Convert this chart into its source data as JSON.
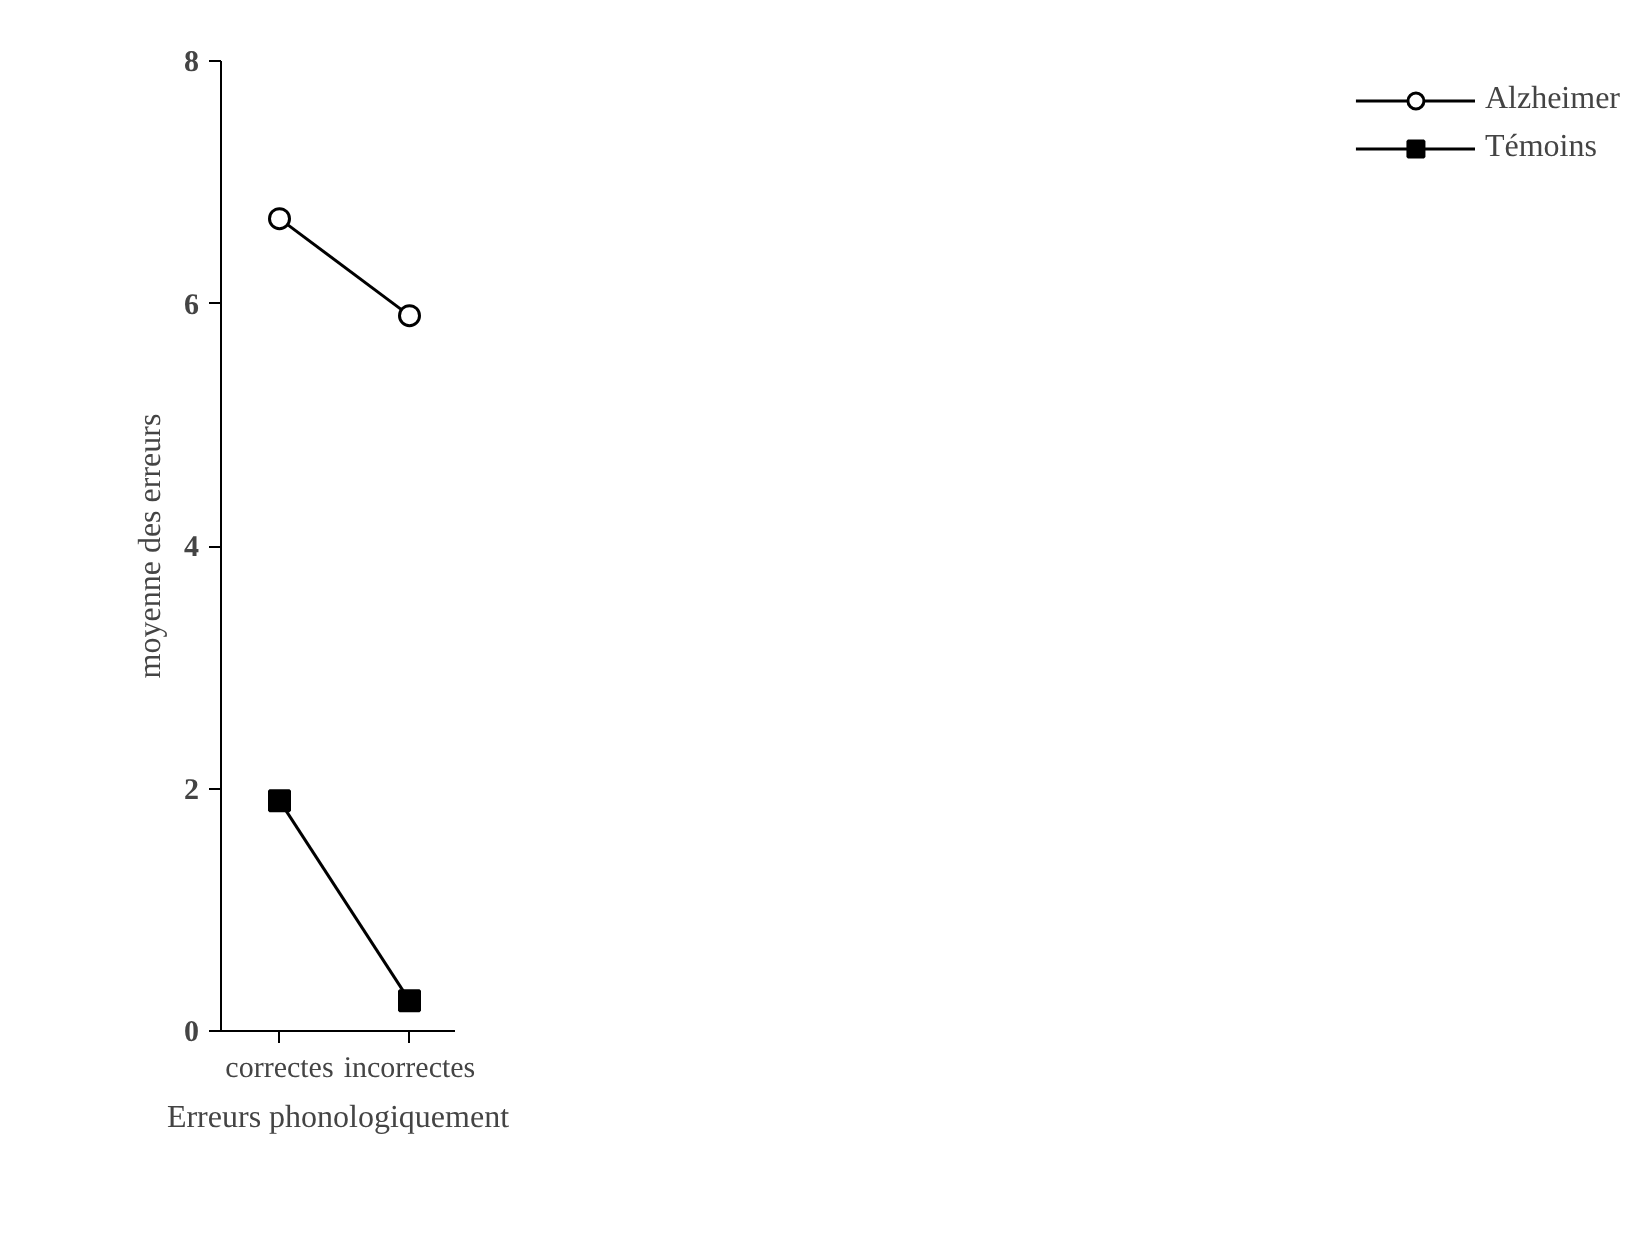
{
  "chart_data": {
    "type": "line",
    "xlabel": "Erreurs phonologiquement",
    "ylabel": "moyenne des erreurs",
    "categories": [
      "correctes",
      "incorrectes"
    ],
    "series": [
      {
        "name": "Alzheimer",
        "color": "#000000",
        "values": [
          6.7,
          5.9
        ],
        "marker": "circle"
      },
      {
        "name": "Témoins",
        "color": "#000000",
        "values": [
          1.9,
          0.25
        ],
        "marker": "square"
      }
    ],
    "ylim": [
      0,
      8
    ],
    "yticks": [
      0,
      2,
      4,
      6,
      8
    ],
    "grid": false,
    "legend": "right",
    "line_style": "solid"
  }
}
